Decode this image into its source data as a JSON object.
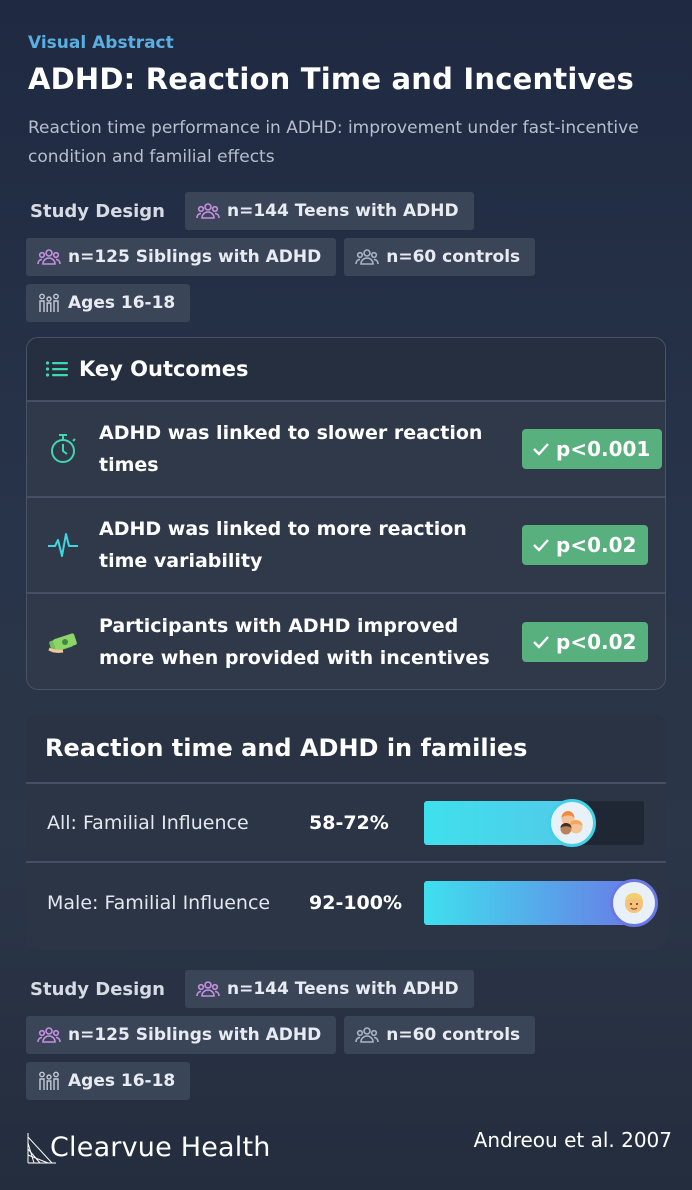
{
  "header": {
    "kicker": "Visual Abstract",
    "title": "ADHD: Reaction Time and Incentives",
    "subtitle": "Reaction time performance in ADHD: improvement under fast-incentive condition and familial effects"
  },
  "study_design": {
    "label": "Study Design",
    "pills": [
      {
        "icon": "group-icon",
        "text": "n=144 Teens with ADHD"
      },
      {
        "icon": "group-icon",
        "text": "n=125 Siblings with ADHD"
      },
      {
        "icon": "group-icon",
        "text": "n=60 controls"
      },
      {
        "icon": "family-icon",
        "text": "Ages 16-18"
      }
    ]
  },
  "key_outcomes": {
    "title": "Key Outcomes",
    "items": [
      {
        "icon": "stopwatch-icon",
        "text": "ADHD was linked to slower reaction times",
        "badge": "p<0.001"
      },
      {
        "icon": "heartbeat-icon",
        "text": "ADHD was linked to more reaction time variability",
        "badge": "p<0.02"
      },
      {
        "icon": "money-icon",
        "text": "Participants with ADHD improved more when provided with incentives",
        "badge": "p<0.02"
      }
    ]
  },
  "families": {
    "title": "Reaction time and ADHD in families",
    "rows": [
      {
        "label": "All: Familial Influence",
        "value": "58-72%",
        "fill_fraction": 0.72,
        "icon": "children-icon"
      },
      {
        "label": "Male: Familial Influence",
        "value": "92-100%",
        "fill_fraction": 1.0,
        "icon": "man-icon"
      }
    ]
  },
  "footer": {
    "brand": "Clearvue Health",
    "citation": "Andreou et al. 2007"
  },
  "colors": {
    "accent": "#5aaee0",
    "badge_green": "#58b07e",
    "bar_start": "#3fe0ee",
    "bar_end": "#6a78e6",
    "group_icon": "#c690e0"
  }
}
